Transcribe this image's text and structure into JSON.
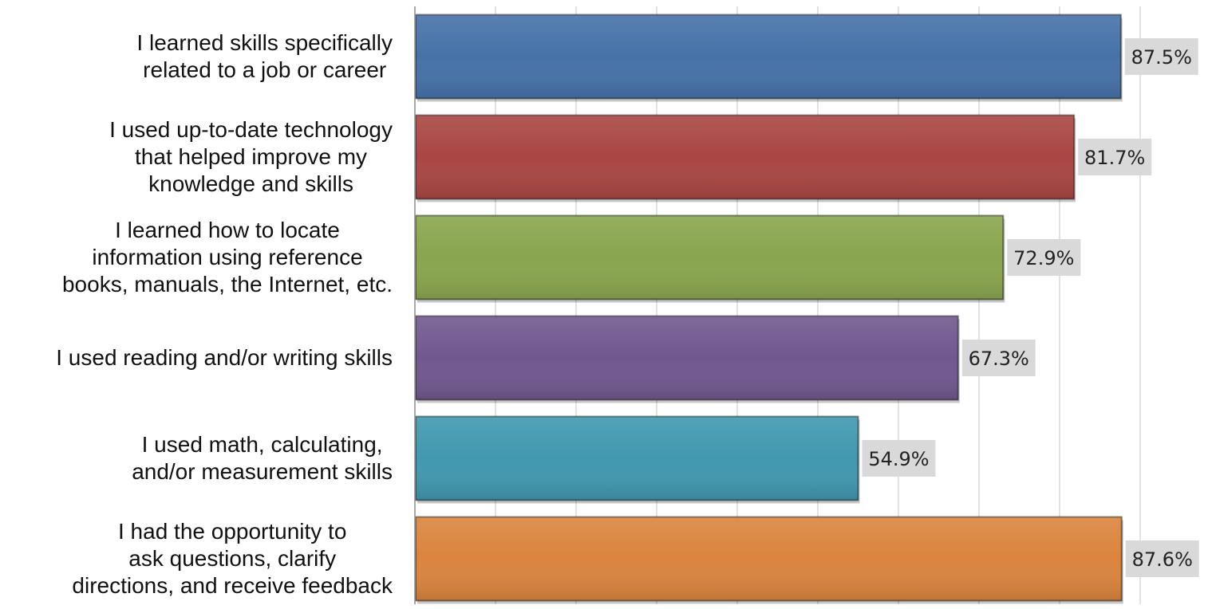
{
  "chart_data": {
    "type": "bar",
    "orientation": "horizontal",
    "title": "",
    "xlabel": "",
    "ylabel": "",
    "categories": [
      "I learned skills specifically\nrelated to a job or career",
      "I used up-to-date technology\nthat helped improve my\nknowledge and skills",
      "I learned how to locate\ninformation using reference\nbooks, manuals, the Internet, etc.",
      "I used reading and/or writing skills",
      "I used math, calculating,\nand/or measurement skills",
      "I had the opportunity to\nask questions, clarify\ndirections, and receive feedback"
    ],
    "values": [
      87.5,
      81.7,
      72.9,
      67.3,
      54.9,
      87.6
    ],
    "value_labels": [
      "87.5%",
      "81.7%",
      "72.9%",
      "67.3%",
      "54.9%",
      "87.6%"
    ],
    "colors": [
      "#4672a8",
      "#aa4644",
      "#89a54e",
      "#71588f",
      "#4198af",
      "#db843d"
    ],
    "xlim": [
      0,
      100
    ],
    "grid": true,
    "legend": "none"
  }
}
